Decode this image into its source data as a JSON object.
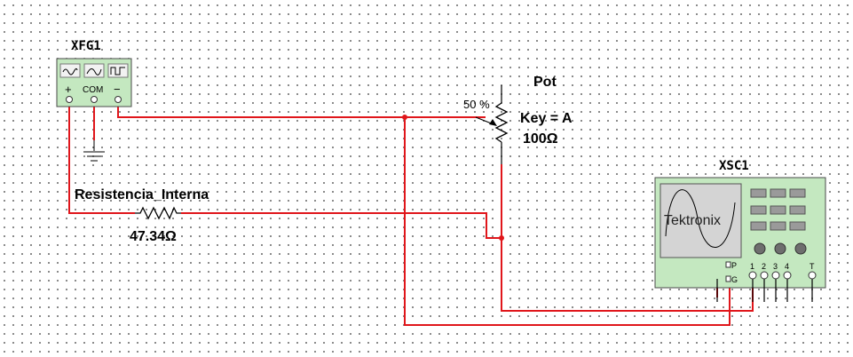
{
  "function_generator": {
    "name": "XFG1",
    "terminals": {
      "plus": "+",
      "com": "COM",
      "minus": "−"
    },
    "waveforms": [
      "sine-icon",
      "triangle-icon",
      "square-icon"
    ]
  },
  "resistor": {
    "name": "Resistencia_Interna",
    "value": "47.34Ω"
  },
  "potentiometer": {
    "name": "Pot",
    "percent": "50 %",
    "key": "Key = A",
    "value": "100Ω"
  },
  "oscilloscope": {
    "name": "XSC1",
    "brand": "Tektronix",
    "probe_labels": [
      "P",
      "G"
    ],
    "channel_labels": [
      "1",
      "2",
      "3",
      "4",
      "T"
    ]
  },
  "colors": {
    "wire": "#e0161b",
    "instrument_body": "#c4e8c0",
    "screen": "#d4d4d4"
  }
}
